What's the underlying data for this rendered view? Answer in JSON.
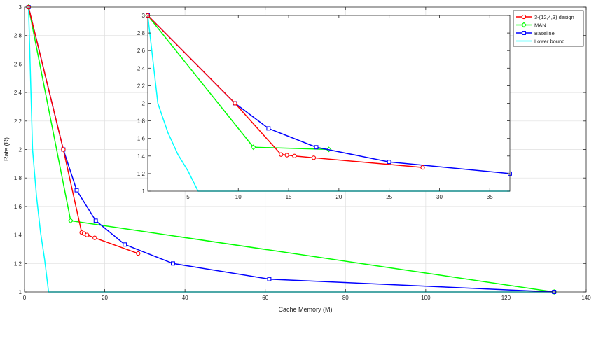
{
  "chart_data": [
    {
      "id": "main",
      "type": "line",
      "title": "",
      "xlabel": "Cache Memory (M)",
      "ylabel": "Rate (R)",
      "xlim": [
        0,
        140
      ],
      "ylim": [
        1,
        3
      ],
      "xticks": [
        0,
        20,
        40,
        60,
        80,
        100,
        120,
        140
      ],
      "yticks": [
        1,
        1.2,
        1.4,
        1.6,
        1.8,
        2,
        2.2,
        2.4,
        2.6,
        2.8,
        3
      ],
      "xtick_labels": [
        "0",
        "20",
        "40",
        "60",
        "80",
        "100",
        "120",
        "140"
      ],
      "ytick_labels": [
        "1",
        "1.2",
        "1.4",
        "1.6",
        "1.8",
        "2",
        "2.2",
        "2.4",
        "2.6",
        "2.8",
        "3"
      ],
      "grid": true,
      "series": [
        {
          "key": "design",
          "name": "3-(12,4,3) design",
          "color": "#ff0000",
          "marker": "circle",
          "x": [
            1,
            9.67,
            14.25,
            14.83,
            15.58,
            17.5,
            28.33
          ],
          "y": [
            3,
            2,
            1.417,
            1.41,
            1.4,
            1.38,
            1.27
          ]
        },
        {
          "key": "man",
          "name": "MAN",
          "color": "#00ff00",
          "marker": "diamond",
          "x": [
            1,
            11.5,
            132
          ],
          "y": [
            3,
            1.5,
            1
          ]
        },
        {
          "key": "baseline",
          "name": "Baseline",
          "color": "#0000ff",
          "marker": "square",
          "x": [
            1,
            9.67,
            13,
            17.75,
            25,
            37,
            61,
            132
          ],
          "y": [
            3,
            2,
            1.714,
            1.5,
            1.333,
            1.2,
            1.09,
            1
          ]
        },
        {
          "key": "lower",
          "name": "Lower bound",
          "color": "#00ffff",
          "marker": "none",
          "x": [
            1,
            2,
            3,
            4,
            5,
            6,
            132
          ],
          "y": [
            3,
            2.0,
            1.667,
            1.417,
            1.23,
            1.0,
            1.0
          ]
        }
      ]
    },
    {
      "id": "inset",
      "type": "line",
      "title": "",
      "xlabel": "",
      "ylabel": "",
      "xlim": [
        1,
        37
      ],
      "ylim": [
        1,
        3
      ],
      "xticks": [
        5,
        10,
        15,
        20,
        25,
        30,
        35
      ],
      "yticks": [
        1,
        1.2,
        1.4,
        1.6,
        1.8,
        2,
        2.2,
        2.4,
        2.6,
        2.8,
        3
      ],
      "xtick_labels": [
        "5",
        "10",
        "15",
        "20",
        "25",
        "30",
        "35"
      ],
      "ytick_labels": [
        "1",
        "1.2",
        "1.4",
        "1.6",
        "1.8",
        "2",
        "2.2",
        "2.4",
        "2.6",
        "2.8",
        "3"
      ],
      "grid": false,
      "series": [
        {
          "key": "design",
          "name": "3-(12,4,3) design",
          "color": "#ff0000",
          "marker": "circle",
          "x": [
            1,
            9.67,
            14.25,
            14.83,
            15.58,
            17.5,
            28.33
          ],
          "y": [
            3,
            2,
            1.417,
            1.41,
            1.4,
            1.38,
            1.27
          ]
        },
        {
          "key": "man",
          "name": "MAN",
          "color": "#00ff00",
          "marker": "diamond",
          "x": [
            1,
            11.5,
            19
          ],
          "y": [
            3,
            1.5,
            1.475
          ]
        },
        {
          "key": "baseline",
          "name": "Baseline",
          "color": "#0000ff",
          "marker": "square",
          "x": [
            1,
            9.67,
            13,
            17.75,
            25,
            37
          ],
          "y": [
            3,
            2,
            1.714,
            1.5,
            1.333,
            1.2
          ]
        },
        {
          "key": "lower",
          "name": "Lower bound",
          "color": "#00ffff",
          "marker": "none",
          "x": [
            1,
            2,
            3,
            4,
            5,
            6,
            37
          ],
          "y": [
            3,
            2.0,
            1.667,
            1.417,
            1.23,
            1.0,
            1.0
          ]
        }
      ]
    }
  ],
  "legend": {
    "placement": "top-right",
    "entries": [
      {
        "label": "3-(12,4,3) design",
        "color": "#ff0000",
        "marker": "circle"
      },
      {
        "label": "MAN",
        "color": "#00ff00",
        "marker": "diamond"
      },
      {
        "label": "Baseline",
        "color": "#0000ff",
        "marker": "square"
      },
      {
        "label": "Lower bound",
        "color": "#00ffff",
        "marker": "none"
      }
    ]
  }
}
